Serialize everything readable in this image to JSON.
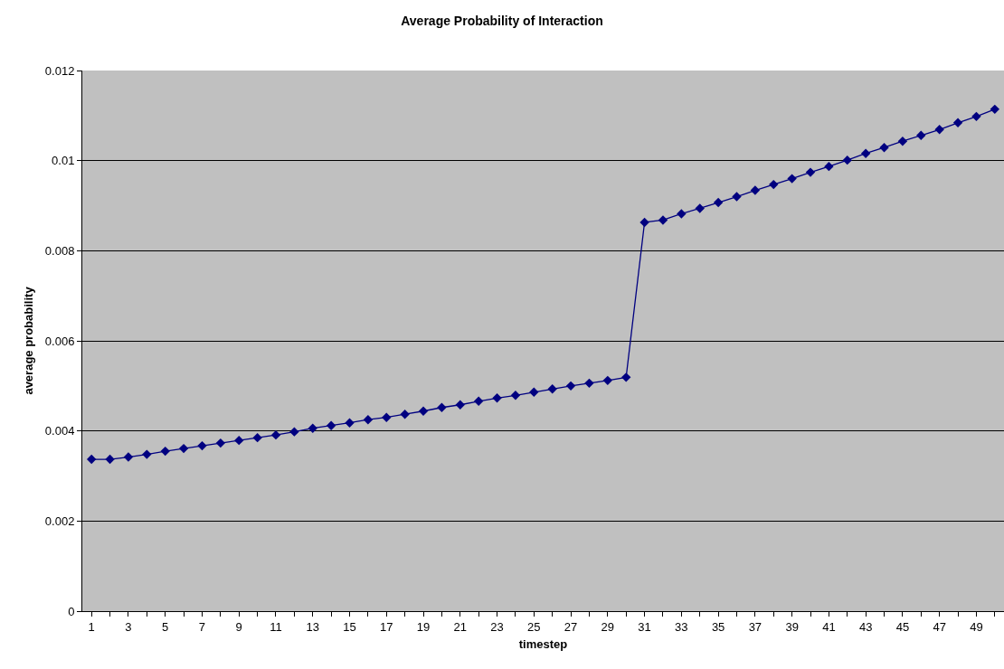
{
  "chart_data": {
    "type": "line",
    "title": "Average Probability of Interaction",
    "xlabel": "timestep",
    "ylabel": "average probability",
    "x": [
      1,
      2,
      3,
      4,
      5,
      6,
      7,
      8,
      9,
      10,
      11,
      12,
      13,
      14,
      15,
      16,
      17,
      18,
      19,
      20,
      21,
      22,
      23,
      24,
      25,
      26,
      27,
      28,
      29,
      30,
      31,
      32,
      33,
      34,
      35,
      36,
      37,
      38,
      39,
      40,
      41,
      42,
      43,
      44,
      45,
      46,
      47,
      48,
      49,
      50
    ],
    "series": [
      {
        "color": "#000080",
        "values": [
          0.00337,
          0.00337,
          0.00342,
          0.00348,
          0.00355,
          0.00361,
          0.00367,
          0.00373,
          0.00379,
          0.00385,
          0.00391,
          0.00398,
          0.00406,
          0.00412,
          0.00418,
          0.00425,
          0.0043,
          0.00437,
          0.00444,
          0.00452,
          0.00458,
          0.00466,
          0.00473,
          0.00479,
          0.00486,
          0.00493,
          0.005,
          0.00506,
          0.00512,
          0.00519,
          0.00863,
          0.00868,
          0.00882,
          0.00894,
          0.00907,
          0.0092,
          0.00934,
          0.00947,
          0.0096,
          0.00974,
          0.00987,
          0.01001,
          0.01016,
          0.01029,
          0.01043,
          0.01056,
          0.01069,
          0.01084,
          0.01098,
          0.01114
        ]
      }
    ],
    "xlim": [
      0.5,
      50.5
    ],
    "xticks": [
      1,
      {
        "value": 2,
        "label": null
      },
      3,
      {
        "value": 4,
        "label": null
      },
      5,
      {
        "value": 6,
        "label": null
      },
      7,
      {
        "value": 8,
        "label": null
      },
      9,
      {
        "value": 10,
        "label": null
      },
      11,
      {
        "value": 12,
        "label": null
      },
      13,
      {
        "value": 14,
        "label": null
      },
      15,
      {
        "value": 16,
        "label": null
      },
      17,
      {
        "value": 18,
        "label": null
      },
      19,
      {
        "value": 20,
        "label": null
      },
      21,
      {
        "value": 22,
        "label": null
      },
      23,
      {
        "value": 24,
        "label": null
      },
      25,
      {
        "value": 26,
        "label": null
      },
      27,
      {
        "value": 28,
        "label": null
      },
      29,
      {
        "value": 30,
        "label": null
      },
      31,
      {
        "value": 32,
        "label": null
      },
      33,
      {
        "value": 34,
        "label": null
      },
      35,
      {
        "value": 36,
        "label": null
      },
      37,
      {
        "value": 38,
        "label": null
      },
      39,
      {
        "value": 40,
        "label": null
      },
      41,
      {
        "value": 42,
        "label": null
      },
      43,
      {
        "value": 44,
        "label": null
      },
      45,
      {
        "value": 46,
        "label": null
      },
      47,
      {
        "value": 48,
        "label": null
      },
      49,
      {
        "value": 50,
        "label": null
      }
    ],
    "ylim": [
      0,
      0.012
    ],
    "yticks": [
      0,
      0.002,
      0.004,
      0.006,
      0.008,
      0.01,
      0.012
    ],
    "grid": "y",
    "marker": "diamond",
    "line_style": "solid"
  }
}
